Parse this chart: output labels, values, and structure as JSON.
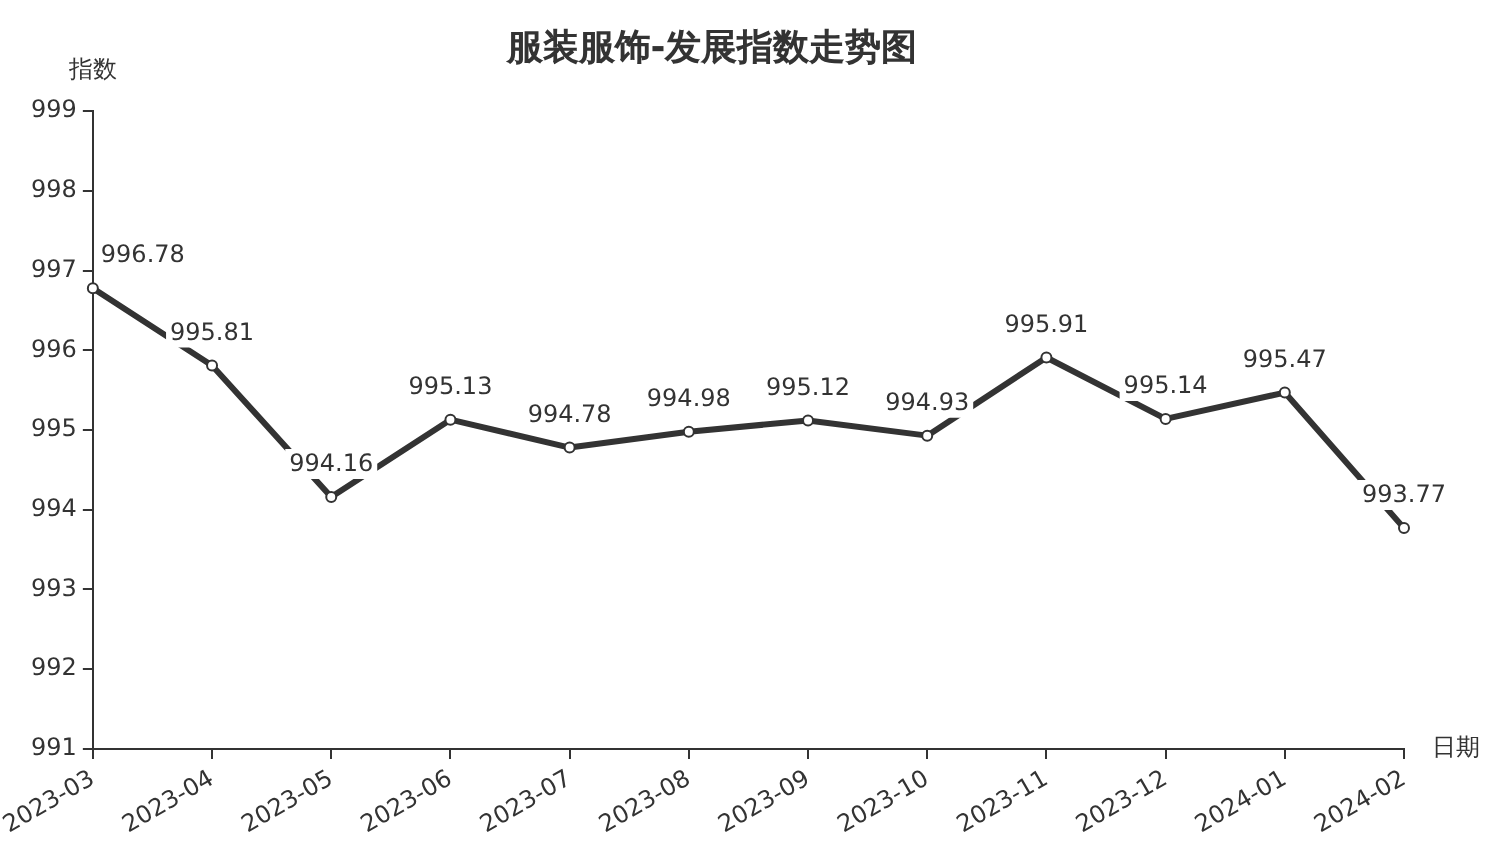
{
  "chart_data": {
    "type": "line",
    "title": "服装服饰-发展指数走势图",
    "ylabel": "指数",
    "xlabel": "日期",
    "categories": [
      "2023-03",
      "2023-04",
      "2023-05",
      "2023-06",
      "2023-07",
      "2023-08",
      "2023-09",
      "2023-10",
      "2023-11",
      "2023-12",
      "2024-01",
      "2024-02"
    ],
    "series": [
      {
        "color": "#333333",
        "values": [
          996.78,
          995.81,
          994.16,
          995.13,
          994.78,
          994.98,
          995.12,
          994.93,
          995.91,
          995.14,
          995.47,
          993.77
        ]
      }
    ],
    "ylim": [
      991,
      999
    ],
    "yticks": [
      991,
      992,
      993,
      994,
      995,
      996,
      997,
      998,
      999
    ],
    "grid": false,
    "legend": false,
    "marker": "circle",
    "line_style": "solid",
    "data_labels": true
  }
}
